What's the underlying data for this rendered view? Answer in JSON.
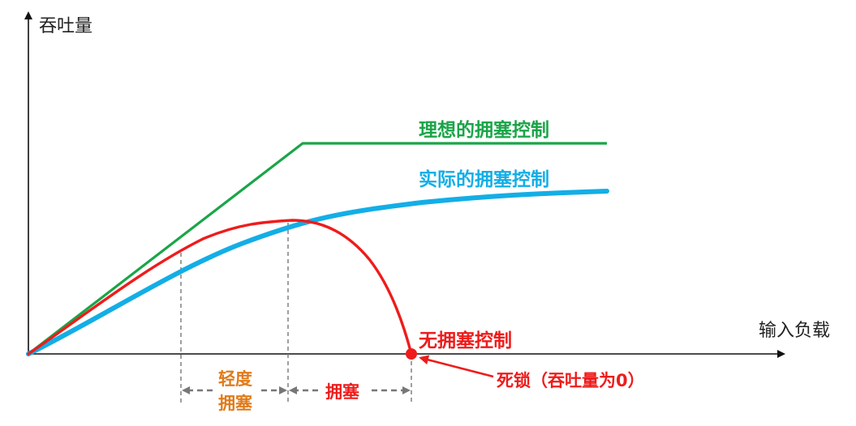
{
  "axes": {
    "y_label": "吞吐量",
    "x_label": "输入负载"
  },
  "curves": {
    "ideal": {
      "label": "理想的拥塞控制",
      "color": "#1aa548"
    },
    "actual": {
      "label": "实际的拥塞控制",
      "color": "#13aee6"
    },
    "none": {
      "label": "无拥塞控制",
      "color": "#ee1c1c"
    }
  },
  "annotations": {
    "deadlock": "死锁（吞吐量为0）",
    "light_congestion_line1": "轻度",
    "light_congestion_line2": "拥塞",
    "congestion": "拥塞"
  },
  "colors": {
    "axis": "#111111",
    "guide": "#777777",
    "light_congestion_text": "#e07b1a",
    "congestion_text": "#ee1c1c",
    "deadlock_text": "#ee1c1c"
  }
}
